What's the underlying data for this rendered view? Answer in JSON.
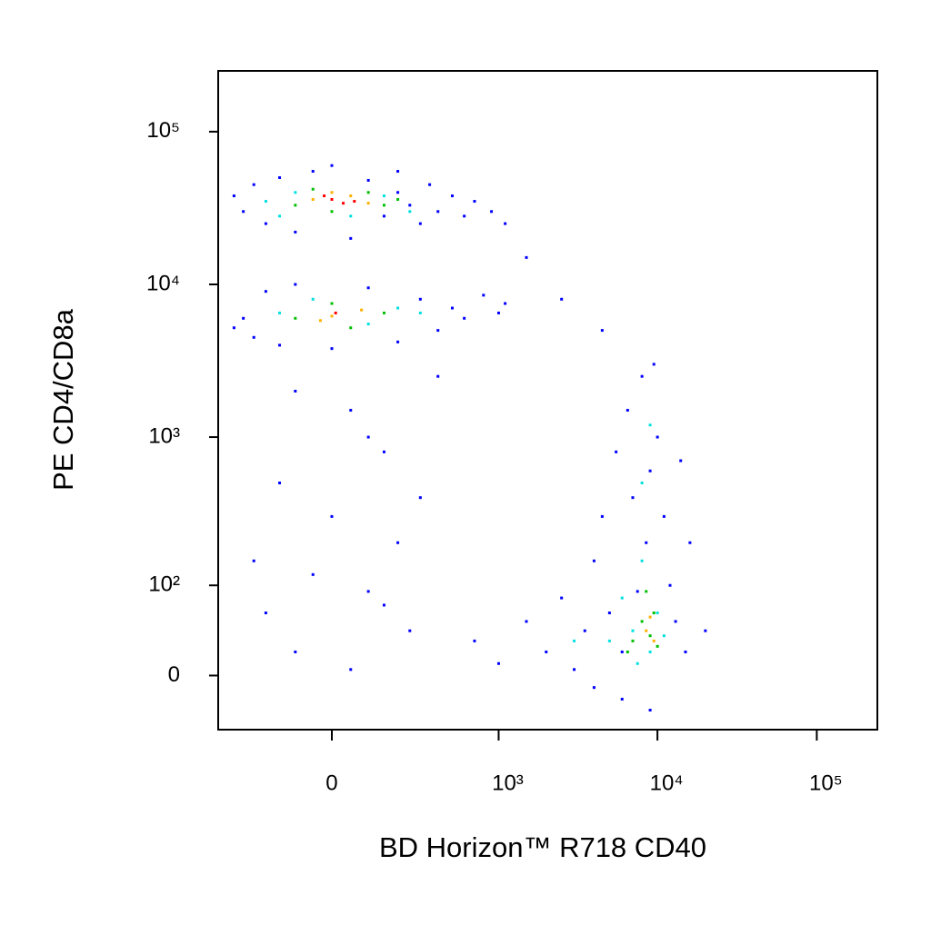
{
  "chart_data": {
    "type": "scatter",
    "x_label": "BD Horizon™ R718 CD40",
    "y_label": "PE CD4/CD8a",
    "xscale": "biexponential",
    "yscale": "biexponential",
    "xlim": [
      -450,
      240000
    ],
    "ylim": [
      -50,
      250000
    ],
    "xticks": [
      0,
      {
        "value": 1000,
        "label": "10³"
      },
      {
        "value": 10000,
        "label": "10⁴"
      },
      {
        "value": 100000,
        "label": "10⁵"
      }
    ],
    "yticks": [
      0,
      {
        "value": 100,
        "label": "10²"
      },
      {
        "value": 1000,
        "label": "10³"
      },
      {
        "value": 10000,
        "label": "10⁴"
      },
      {
        "value": 100000,
        "label": "10⁵"
      }
    ],
    "series": [
      {
        "color": "#0000ff",
        "x": [
          -300,
          -250,
          -200,
          -150,
          -100,
          -50,
          50,
          100,
          150,
          200,
          250,
          300,
          350,
          400,
          500,
          600,
          700,
          900,
          1100,
          -350,
          0,
          200,
          -300,
          -250,
          -200,
          -150,
          -100,
          0,
          100,
          200,
          300,
          400,
          500,
          600,
          800,
          1000,
          1100,
          -350,
          -100,
          50,
          150,
          -150,
          0,
          200,
          -50,
          100,
          -200,
          250,
          -100,
          50,
          150,
          -250,
          300,
          100,
          400,
          1500,
          2500,
          4500,
          700,
          1000,
          1500,
          2000,
          2500,
          3000,
          3500,
          4000,
          4500,
          5000,
          5500,
          6000,
          6500,
          7000,
          7500,
          8000,
          8500,
          9000,
          9500,
          10000,
          11000,
          12000,
          13000,
          14000,
          15000,
          16000,
          20000,
          6000,
          9000,
          4000
        ],
        "y": [
          30000,
          45000,
          25000,
          50000,
          22000,
          55000,
          20000,
          48000,
          28000,
          40000,
          33000,
          25000,
          45000,
          30000,
          38000,
          28000,
          35000,
          30000,
          25000,
          38000,
          60000,
          55000,
          6000,
          4500,
          9000,
          4000,
          10000,
          3800,
          9500,
          4200,
          8000,
          5000,
          7000,
          6000,
          8500,
          6500,
          7500,
          5200,
          2000,
          1500,
          800,
          500,
          300,
          200,
          120,
          90,
          60,
          40,
          20,
          5,
          70,
          150,
          400,
          1000,
          2500,
          15000,
          8000,
          5000,
          30,
          10,
          50,
          20,
          80,
          5,
          40,
          150,
          300,
          60,
          800,
          20,
          1500,
          400,
          90,
          2500,
          200,
          600,
          3000,
          1000,
          300,
          100,
          50,
          700,
          20,
          200,
          40,
          -20,
          -30,
          -10
        ]
      },
      {
        "color": "#00e0e0",
        "x": [
          -200,
          -100,
          50,
          150,
          250,
          -150,
          -150,
          100,
          200,
          -50,
          300,
          5000,
          6000,
          7000,
          8000,
          9000,
          10000,
          11000,
          8000,
          9000,
          3000,
          7500
        ],
        "y": [
          35000,
          40000,
          28000,
          38000,
          30000,
          28000,
          6500,
          5500,
          7000,
          8000,
          6500,
          30,
          80,
          40,
          150,
          20,
          60,
          35,
          500,
          1200,
          30,
          10
        ]
      },
      {
        "color": "#00c000",
        "x": [
          -100,
          0,
          100,
          -50,
          150,
          200,
          -100,
          0,
          50,
          150,
          7000,
          8000,
          9000,
          10000,
          8500,
          9500,
          6500
        ],
        "y": [
          33000,
          30000,
          40000,
          42000,
          33000,
          36000,
          6000,
          7500,
          5200,
          6500,
          30,
          50,
          35,
          25,
          90,
          60,
          20
        ]
      },
      {
        "color": "#ffb000",
        "x": [
          -50,
          50,
          100,
          0,
          0,
          80,
          -30,
          8500,
          9500,
          9000
        ],
        "y": [
          36000,
          38000,
          34000,
          40000,
          6200,
          6800,
          5800,
          40,
          30,
          55
        ]
      },
      {
        "color": "#ff0000",
        "x": [
          0,
          30,
          -20,
          60,
          10
        ],
        "y": [
          36000,
          34000,
          38000,
          35000,
          6500
        ]
      }
    ]
  }
}
